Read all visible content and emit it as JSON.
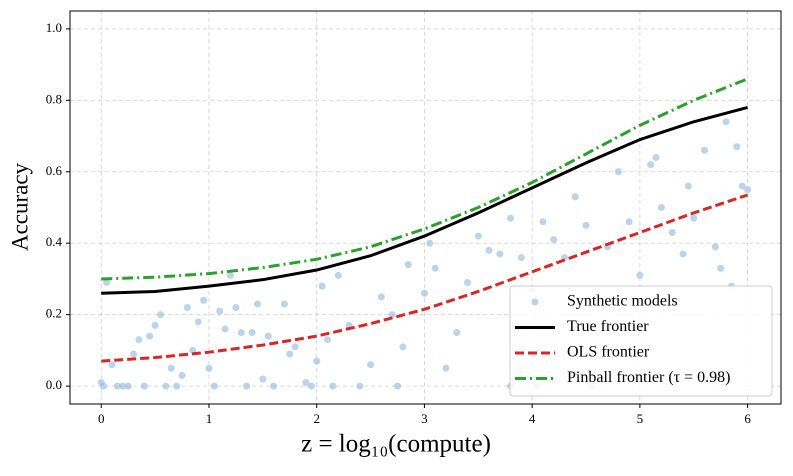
{
  "chart_data": {
    "type": "scatter",
    "xlabel": "z = log₁₀(compute)",
    "ylabel": "Accuracy",
    "xlim": [
      -0.29,
      6.31
    ],
    "ylim": [
      -0.05,
      1.05
    ],
    "xticks": [
      0,
      1,
      2,
      3,
      4,
      5,
      6
    ],
    "yticks": [
      {
        "value": 0,
        "label": "0.0"
      },
      0.2,
      0.4,
      0.6,
      0.8,
      {
        "value": 1,
        "label": "1.0"
      }
    ],
    "grid": true,
    "legend": "lower right",
    "series": [
      {
        "name": "Synthetic models",
        "type": "scatter",
        "color": "#9ec2e0",
        "x": [
          0,
          0.02,
          0.05,
          0.1,
          0.15,
          0.2,
          0.25,
          0.3,
          0.35,
          0.4,
          0.45,
          0.5,
          0.55,
          0.6,
          0.65,
          0.7,
          0.75,
          0.8,
          0.85,
          0.9,
          0.95,
          1.0,
          1.05,
          1.1,
          1.15,
          1.2,
          1.25,
          1.3,
          1.35,
          1.4,
          1.45,
          1.5,
          1.55,
          1.6,
          1.7,
          1.75,
          1.8,
          1.9,
          2.0,
          2.05,
          2.1,
          2.15,
          2.2,
          2.3,
          2.4,
          2.5,
          2.6,
          2.7,
          2.8,
          2.85,
          3.0,
          3.05,
          3.1,
          3.2,
          3.3,
          3.4,
          3.5,
          3.6,
          3.7,
          3.8,
          3.9,
          4.0,
          4.05,
          4.1,
          4.2,
          4.3,
          4.4,
          4.5,
          4.6,
          4.7,
          4.8,
          4.9,
          5.0,
          5.1,
          5.15,
          5.2,
          5.3,
          5.4,
          5.45,
          5.5,
          5.6,
          5.7,
          5.8,
          5.85,
          5.9,
          5.95,
          6.0,
          5.75,
          4.55,
          3.8,
          2.75,
          1.95
        ],
        "values": [
          0.01,
          0.0,
          0.29,
          0.06,
          0.0,
          0.0,
          0.0,
          0.09,
          0.13,
          0.0,
          0.14,
          0.17,
          0.2,
          0.0,
          0.05,
          0.0,
          0.03,
          0.22,
          0.1,
          0.18,
          0.24,
          0.05,
          0.0,
          0.21,
          0.16,
          0.31,
          0.22,
          0.15,
          0.0,
          0.15,
          0.23,
          0.02,
          0.14,
          0.0,
          0.23,
          0.09,
          0.11,
          0.01,
          0.07,
          0.28,
          0.13,
          0.0,
          0.31,
          0.17,
          0.0,
          0.06,
          0.25,
          0.2,
          0.11,
          0.34,
          0.26,
          0.4,
          0.33,
          0.05,
          0.15,
          0.29,
          0.42,
          0.38,
          0.37,
          0.47,
          0.36,
          0.27,
          0.0,
          0.46,
          0.41,
          0.36,
          0.53,
          0.45,
          0.24,
          0.39,
          0.6,
          0.46,
          0.31,
          0.62,
          0.64,
          0.5,
          0.43,
          0.37,
          0.56,
          0.47,
          0.66,
          0.39,
          0.74,
          0.28,
          0.67,
          0.56,
          0.55,
          0.33,
          0.0,
          0.0,
          0.0,
          0.0
        ]
      },
      {
        "name": "True frontier",
        "type": "line",
        "color": "#000000",
        "dash": "solid",
        "x": [
          0,
          0.5,
          1,
          1.5,
          2,
          2.5,
          3,
          3.5,
          4,
          4.5,
          5,
          5.5,
          6
        ],
        "values": [
          0.26,
          0.265,
          0.28,
          0.298,
          0.325,
          0.365,
          0.42,
          0.485,
          0.555,
          0.625,
          0.69,
          0.74,
          0.78
        ]
      },
      {
        "name": "OLS frontier",
        "type": "line",
        "color": "#d62728",
        "dash": "dashed",
        "x": [
          0,
          0.5,
          1,
          1.5,
          2,
          2.5,
          3,
          3.5,
          4,
          4.5,
          5,
          5.5,
          6
        ],
        "values": [
          0.07,
          0.08,
          0.095,
          0.115,
          0.14,
          0.175,
          0.215,
          0.265,
          0.32,
          0.375,
          0.43,
          0.485,
          0.535
        ]
      },
      {
        "name": "Pinball frontier (τ = 0.98)",
        "type": "line",
        "color": "#2ca02c",
        "dash": "dashdot",
        "x": [
          0,
          0.5,
          1,
          1.5,
          2,
          2.5,
          3,
          3.5,
          4,
          4.5,
          5,
          5.5,
          6
        ],
        "values": [
          0.3,
          0.305,
          0.315,
          0.332,
          0.355,
          0.39,
          0.44,
          0.5,
          0.57,
          0.65,
          0.73,
          0.8,
          0.86
        ]
      }
    ]
  }
}
